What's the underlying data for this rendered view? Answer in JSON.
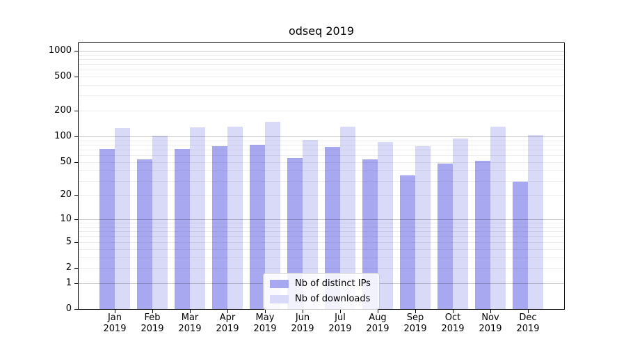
{
  "chart_data": {
    "type": "bar",
    "title": "odseq 2019",
    "categories": [
      "Jan",
      "Feb",
      "Mar",
      "Apr",
      "May",
      "Jun",
      "Jul",
      "Aug",
      "Sep",
      "Oct",
      "Nov",
      "Dec"
    ],
    "category_year": "2019",
    "series": [
      {
        "name": "Nb of distinct IPs",
        "color": "#a8a8f0",
        "values": [
          71,
          54,
          72,
          77,
          80,
          56,
          75,
          54,
          35,
          48,
          52,
          29
        ]
      },
      {
        "name": "Nb of downloads",
        "color": "#d9d9f8",
        "values": [
          125,
          102,
          129,
          130,
          149,
          92,
          131,
          86,
          77,
          94,
          131,
          104
        ]
      }
    ],
    "xlabel": "",
    "ylabel": "",
    "yscale": "log1p",
    "ylim": [
      0,
      1224
    ],
    "yticks": [
      0,
      1,
      2,
      5,
      10,
      20,
      50,
      100,
      200,
      500,
      1000
    ],
    "grid": "horizontal, major at powers of 10, faint minors at 2-9 per decade",
    "legend_position": "inside bottom-center"
  }
}
